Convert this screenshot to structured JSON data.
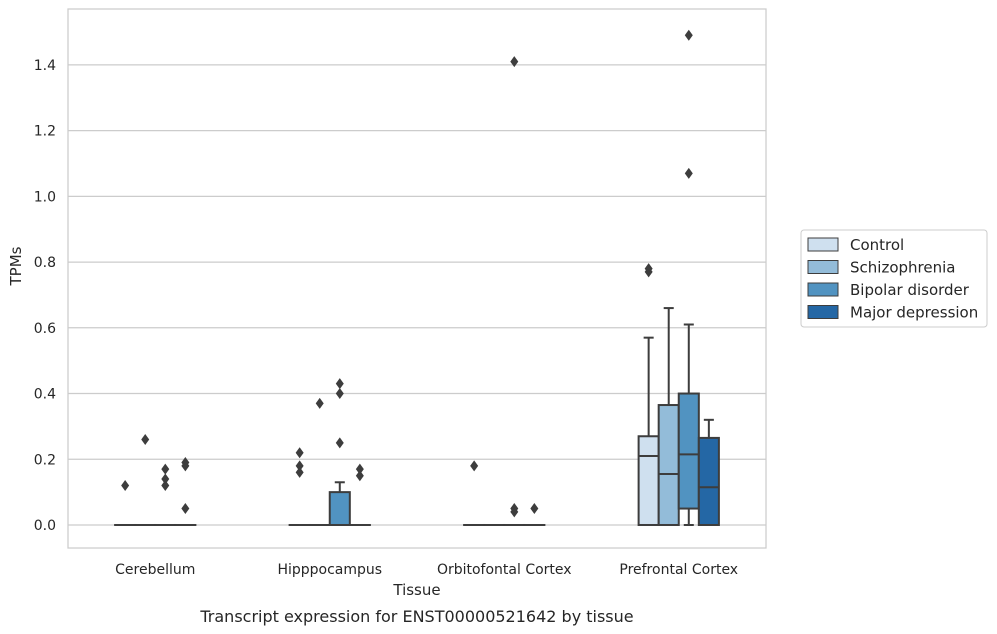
{
  "chart_data": {
    "type": "box",
    "title": "",
    "caption": "Transcript expression for ENST00000521642 by tissue",
    "xlabel": "Tissue",
    "ylabel": "TPMs",
    "ylim": [
      -0.07,
      1.57
    ],
    "yticks": [
      "0.0",
      "0.2",
      "0.4",
      "0.6",
      "0.8",
      "1.0",
      "1.2",
      "1.4"
    ],
    "grid": "horizontal",
    "legend_position": "right",
    "categories": [
      "Cerebellum",
      "Hipppocampus",
      "Orbitofontal Cortex",
      "Prefrontal Cortex"
    ],
    "series": [
      {
        "name": "Control",
        "color": "#cfe0ef",
        "boxes": [
          {
            "q1": 0,
            "median": 0,
            "q3": 0,
            "whisker_low": 0,
            "whisker_high": 0,
            "outliers": [
              0.12
            ]
          },
          {
            "q1": 0,
            "median": 0,
            "q3": 0,
            "whisker_low": 0,
            "whisker_high": 0,
            "outliers": [
              0.16,
              0.18,
              0.22
            ]
          },
          {
            "q1": 0,
            "median": 0,
            "q3": 0,
            "whisker_low": 0,
            "whisker_high": 0,
            "outliers": [
              0.18
            ]
          },
          {
            "q1": 0,
            "median": 0.21,
            "q3": 0.27,
            "whisker_low": 0,
            "whisker_high": 0.57,
            "outliers": [
              0.77,
              0.78
            ]
          }
        ]
      },
      {
        "name": "Schizophrenia",
        "color": "#93bcd9",
        "boxes": [
          {
            "q1": 0,
            "median": 0,
            "q3": 0,
            "whisker_low": 0,
            "whisker_high": 0,
            "outliers": [
              0.26
            ]
          },
          {
            "q1": 0,
            "median": 0,
            "q3": 0,
            "whisker_low": 0,
            "whisker_high": 0,
            "outliers": [
              0.37
            ]
          },
          {
            "q1": 0,
            "median": 0,
            "q3": 0,
            "whisker_low": 0,
            "whisker_high": 0,
            "outliers": []
          },
          {
            "q1": 0,
            "median": 0.155,
            "q3": 0.365,
            "whisker_low": 0,
            "whisker_high": 0.66,
            "outliers": []
          }
        ]
      },
      {
        "name": "Bipolar disorder",
        "color": "#5193c1",
        "boxes": [
          {
            "q1": 0,
            "median": 0,
            "q3": 0,
            "whisker_low": 0,
            "whisker_high": 0,
            "outliers": [
              0.12,
              0.14,
              0.17
            ]
          },
          {
            "q1": 0,
            "median": 0,
            "q3": 0.1,
            "whisker_low": 0,
            "whisker_high": 0.13,
            "outliers": [
              0.25,
              0.4,
              0.43
            ]
          },
          {
            "q1": 0,
            "median": 0,
            "q3": 0,
            "whisker_low": 0,
            "whisker_high": 0,
            "outliers": [
              0.04,
              0.05,
              1.41
            ]
          },
          {
            "q1": 0.05,
            "median": 0.215,
            "q3": 0.4,
            "whisker_low": 0,
            "whisker_high": 0.61,
            "outliers": [
              1.07,
              1.49
            ]
          }
        ]
      },
      {
        "name": "Major depression",
        "color": "#2467a5",
        "boxes": [
          {
            "q1": 0,
            "median": 0,
            "q3": 0,
            "whisker_low": 0,
            "whisker_high": 0,
            "outliers": [
              0.05,
              0.18,
              0.19
            ]
          },
          {
            "q1": 0,
            "median": 0,
            "q3": 0,
            "whisker_low": 0,
            "whisker_high": 0,
            "outliers": [
              0.15,
              0.17
            ]
          },
          {
            "q1": 0,
            "median": 0,
            "q3": 0,
            "whisker_low": 0,
            "whisker_high": 0,
            "outliers": [
              0.05
            ]
          },
          {
            "q1": 0,
            "median": 0.115,
            "q3": 0.265,
            "whisker_low": 0,
            "whisker_high": 0.32,
            "outliers": []
          }
        ]
      }
    ]
  }
}
